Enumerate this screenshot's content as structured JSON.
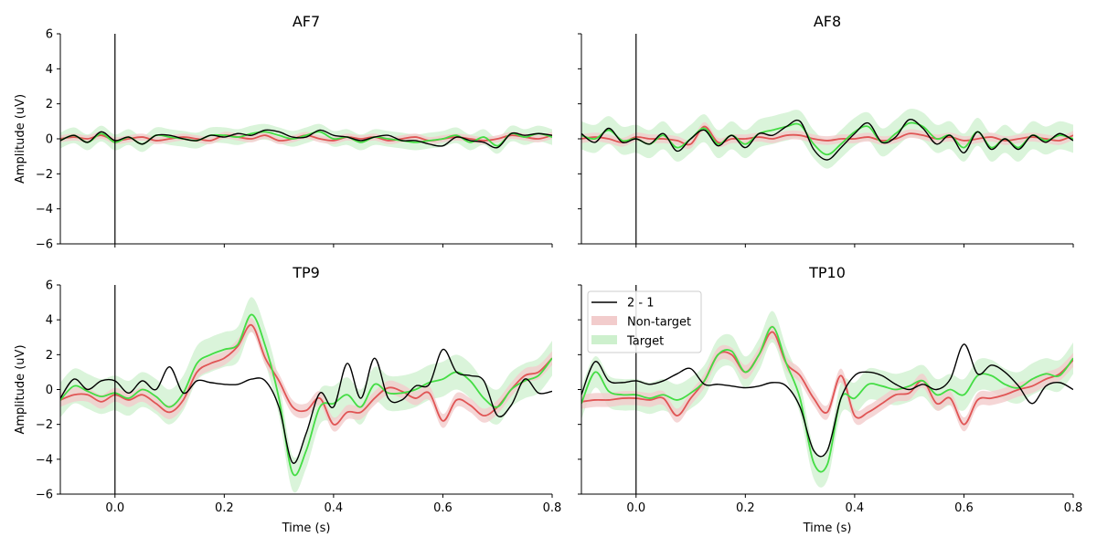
{
  "colors": {
    "difference": "#000000",
    "non_target": "#e05555",
    "non_target_band": "#f2cccc",
    "target": "#44dd44",
    "target_band": "#cdf0cd",
    "axes": "#000000",
    "background": "#ffffff"
  },
  "legend": {
    "placement": "upper-left of TP10 panel",
    "entries": [
      "2 - 1",
      "Non-target",
      "Target"
    ]
  },
  "chart_data": [
    {
      "type": "line",
      "title": "AF7",
      "xlabel": "",
      "ylabel": "Amplitude (uV)",
      "xlim": [
        -0.1,
        0.8
      ],
      "ylim": [
        -6,
        6
      ],
      "x_ticks": [],
      "y_ticks": [
        "6",
        "4",
        "2",
        "0",
        "−2",
        "−4",
        "−6"
      ],
      "vertical_line_at": 0.0,
      "grid": false,
      "x": [
        -0.1,
        -0.075,
        -0.05,
        -0.025,
        0.0,
        0.025,
        0.05,
        0.075,
        0.1,
        0.125,
        0.15,
        0.175,
        0.2,
        0.225,
        0.25,
        0.275,
        0.3,
        0.325,
        0.35,
        0.375,
        0.4,
        0.425,
        0.45,
        0.475,
        0.5,
        0.525,
        0.55,
        0.575,
        0.6,
        0.625,
        0.65,
        0.675,
        0.7,
        0.725,
        0.75,
        0.775,
        0.8
      ],
      "series": [
        {
          "name": "2 - 1",
          "role": "difference",
          "values": [
            -0.1,
            0.2,
            -0.2,
            0.4,
            -0.1,
            0.1,
            -0.3,
            0.2,
            0.2,
            0.0,
            -0.1,
            0.2,
            0.1,
            0.3,
            0.2,
            0.5,
            0.4,
            0.1,
            0.1,
            0.5,
            0.2,
            0.1,
            -0.1,
            0.1,
            0.2,
            -0.1,
            -0.1,
            -0.3,
            -0.4,
            0.1,
            -0.1,
            -0.2,
            -0.5,
            0.3,
            0.2,
            0.3,
            0.2
          ]
        },
        {
          "name": "Non-target",
          "role": "non_target",
          "values": [
            0.0,
            0.1,
            0.0,
            0.2,
            -0.1,
            0.0,
            0.1,
            -0.1,
            0.0,
            0.1,
            0.0,
            -0.1,
            0.2,
            0.1,
            0.0,
            0.2,
            -0.1,
            0.0,
            0.2,
            0.0,
            -0.1,
            0.1,
            0.0,
            0.1,
            -0.1,
            0.0,
            0.1,
            -0.1,
            0.0,
            0.1,
            0.0,
            -0.1,
            0.0,
            0.2,
            0.1,
            0.0,
            0.2
          ],
          "band": 0.2
        },
        {
          "name": "Target",
          "role": "target",
          "values": [
            -0.1,
            0.2,
            -0.2,
            0.3,
            -0.2,
            0.1,
            -0.3,
            0.2,
            0.1,
            0.0,
            -0.1,
            0.2,
            0.2,
            0.1,
            0.3,
            0.4,
            0.2,
            0.0,
            0.2,
            0.4,
            0.0,
            0.1,
            -0.2,
            0.1,
            0.0,
            -0.1,
            -0.2,
            -0.1,
            0.0,
            0.2,
            -0.2,
            0.1,
            -0.4,
            0.3,
            0.1,
            0.3,
            0.1
          ],
          "band": 0.45
        }
      ]
    },
    {
      "type": "line",
      "title": "AF8",
      "xlabel": "",
      "ylabel": "",
      "xlim": [
        -0.1,
        0.8
      ],
      "ylim": [
        -6,
        6
      ],
      "x_ticks": [],
      "y_ticks": [],
      "vertical_line_at": 0.0,
      "grid": false,
      "x": [
        -0.1,
        -0.075,
        -0.05,
        -0.025,
        0.0,
        0.025,
        0.05,
        0.075,
        0.1,
        0.125,
        0.15,
        0.175,
        0.2,
        0.225,
        0.25,
        0.275,
        0.3,
        0.325,
        0.35,
        0.375,
        0.4,
        0.425,
        0.45,
        0.475,
        0.5,
        0.525,
        0.55,
        0.575,
        0.6,
        0.625,
        0.65,
        0.675,
        0.7,
        0.725,
        0.75,
        0.775,
        0.8
      ],
      "series": [
        {
          "name": "2 - 1",
          "role": "difference",
          "values": [
            0.3,
            -0.2,
            0.6,
            -0.2,
            0.0,
            -0.3,
            0.3,
            -0.7,
            0.0,
            0.5,
            -0.4,
            0.2,
            -0.5,
            0.3,
            0.2,
            0.7,
            1.0,
            -0.6,
            -1.2,
            -0.5,
            0.3,
            0.9,
            -0.2,
            0.1,
            1.1,
            0.6,
            -0.3,
            0.2,
            -0.8,
            0.4,
            -0.6,
            0.0,
            -0.6,
            0.2,
            -0.2,
            0.3,
            -0.1
          ]
        },
        {
          "name": "Non-target",
          "role": "non_target",
          "values": [
            0.0,
            0.1,
            0.0,
            -0.2,
            0.1,
            0.0,
            0.0,
            -0.1,
            -0.3,
            0.7,
            -0.2,
            0.0,
            0.0,
            0.1,
            0.0,
            0.2,
            0.2,
            0.0,
            -0.1,
            0.0,
            0.0,
            0.1,
            -0.1,
            0.0,
            0.3,
            0.2,
            0.0,
            0.1,
            -0.1,
            0.0,
            0.1,
            -0.1,
            0.0,
            0.1,
            0.0,
            -0.1,
            0.2
          ],
          "band": 0.25
        },
        {
          "name": "Target",
          "role": "target",
          "values": [
            0.2,
            0.0,
            0.5,
            -0.1,
            0.0,
            -0.3,
            0.2,
            -0.5,
            0.0,
            0.6,
            -0.3,
            0.2,
            -0.3,
            0.3,
            0.5,
            0.7,
            0.8,
            -0.3,
            -0.9,
            -0.3,
            0.4,
            0.7,
            -0.2,
            0.3,
            0.9,
            0.7,
            0.0,
            0.2,
            -0.5,
            0.4,
            -0.5,
            0.0,
            -0.5,
            0.2,
            -0.1,
            0.2,
            0.0
          ],
          "band": 0.8
        }
      ]
    },
    {
      "type": "line",
      "title": "TP9",
      "xlabel": "Time (s)",
      "ylabel": "Amplitude (uV)",
      "xlim": [
        -0.1,
        0.8
      ],
      "ylim": [
        -6,
        6
      ],
      "x_ticks": [
        "0.0",
        "0.2",
        "0.4",
        "0.6",
        "0.8"
      ],
      "y_ticks": [
        "6",
        "4",
        "2",
        "0",
        "−2",
        "−4",
        "−6"
      ],
      "vertical_line_at": 0.0,
      "grid": false,
      "x": [
        -0.1,
        -0.075,
        -0.05,
        -0.025,
        0.0,
        0.025,
        0.05,
        0.075,
        0.1,
        0.125,
        0.15,
        0.175,
        0.2,
        0.225,
        0.25,
        0.275,
        0.3,
        0.325,
        0.35,
        0.375,
        0.4,
        0.425,
        0.45,
        0.475,
        0.5,
        0.525,
        0.55,
        0.575,
        0.6,
        0.625,
        0.65,
        0.675,
        0.7,
        0.725,
        0.75,
        0.775,
        0.8
      ],
      "series": [
        {
          "name": "2 - 1",
          "role": "difference",
          "values": [
            -0.5,
            0.6,
            0.0,
            0.5,
            0.5,
            -0.2,
            0.5,
            0.0,
            1.3,
            -0.2,
            0.5,
            0.4,
            0.3,
            0.3,
            0.6,
            0.5,
            -1.0,
            -4.2,
            -2.5,
            -0.2,
            -1.0,
            1.5,
            -0.5,
            1.8,
            -0.5,
            -0.6,
            0.2,
            0.3,
            2.3,
            1.0,
            0.8,
            0.5,
            -1.5,
            -0.9,
            0.6,
            -0.2,
            -0.1
          ]
        },
        {
          "name": "Non-target",
          "role": "non_target",
          "values": [
            -0.6,
            -0.3,
            -0.3,
            -0.7,
            -0.3,
            -0.6,
            -0.3,
            -0.8,
            -1.3,
            -0.6,
            1.0,
            1.5,
            1.8,
            2.5,
            3.7,
            1.8,
            0.5,
            -1.0,
            -1.2,
            -0.5,
            -2.0,
            -1.3,
            -1.3,
            -0.5,
            0.1,
            -0.1,
            -0.5,
            -0.2,
            -1.8,
            -0.6,
            -0.9,
            -1.5,
            -1.0,
            0.0,
            0.8,
            1.0,
            1.8
          ],
          "band": 0.4
        },
        {
          "name": "Target",
          "role": "target",
          "values": [
            -0.6,
            0.2,
            -0.1,
            -0.4,
            -0.2,
            -0.5,
            0.0,
            -0.4,
            -1.0,
            -0.2,
            1.5,
            2.0,
            2.3,
            2.6,
            4.3,
            2.5,
            -0.5,
            -4.8,
            -3.5,
            -1.0,
            -0.8,
            -0.3,
            -1.0,
            0.3,
            -0.2,
            -0.2,
            0.0,
            0.4,
            0.6,
            1.0,
            0.5,
            -0.5,
            -1.0,
            0.0,
            0.5,
            0.8,
            1.8
          ],
          "band": 1.0
        }
      ]
    },
    {
      "type": "line",
      "title": "TP10",
      "xlabel": "Time (s)",
      "ylabel": "",
      "xlim": [
        -0.1,
        0.8
      ],
      "ylim": [
        -6,
        6
      ],
      "x_ticks": [
        "0.0",
        "0.2",
        "0.4",
        "0.6",
        "0.8"
      ],
      "y_ticks": [],
      "vertical_line_at": 0.0,
      "grid": false,
      "x": [
        -0.1,
        -0.075,
        -0.05,
        -0.025,
        0.0,
        0.025,
        0.05,
        0.075,
        0.1,
        0.125,
        0.15,
        0.175,
        0.2,
        0.225,
        0.25,
        0.275,
        0.3,
        0.325,
        0.35,
        0.375,
        0.4,
        0.425,
        0.45,
        0.475,
        0.5,
        0.525,
        0.55,
        0.575,
        0.6,
        0.625,
        0.65,
        0.675,
        0.7,
        0.725,
        0.75,
        0.775,
        0.8
      ],
      "series": [
        {
          "name": "2 - 1",
          "role": "difference",
          "values": [
            -0.3,
            1.6,
            0.5,
            0.4,
            0.5,
            0.3,
            0.5,
            0.9,
            1.2,
            0.3,
            0.3,
            0.2,
            0.1,
            0.2,
            0.4,
            0.2,
            -1.0,
            -3.5,
            -3.5,
            -0.5,
            0.8,
            1.0,
            0.8,
            0.3,
            0.0,
            0.3,
            0.0,
            0.6,
            2.6,
            0.9,
            1.4,
            1.0,
            0.2,
            -0.8,
            0.2,
            0.4,
            0.0
          ]
        },
        {
          "name": "Non-target",
          "role": "non_target",
          "values": [
            -0.7,
            -0.6,
            -0.6,
            -0.5,
            -0.5,
            -0.6,
            -0.5,
            -1.5,
            -0.5,
            0.5,
            2.0,
            2.0,
            1.0,
            2.0,
            3.3,
            1.5,
            0.8,
            -0.5,
            -1.3,
            0.8,
            -1.5,
            -1.3,
            -0.8,
            -0.3,
            -0.2,
            0.5,
            -0.8,
            -0.5,
            -2.0,
            -0.6,
            -0.5,
            -0.3,
            0.0,
            0.2,
            0.6,
            0.9,
            1.7
          ],
          "band": 0.4
        },
        {
          "name": "Target",
          "role": "target",
          "values": [
            -0.8,
            1.0,
            -0.1,
            -0.3,
            -0.3,
            -0.5,
            -0.3,
            -0.6,
            -0.2,
            0.5,
            2.0,
            2.2,
            1.0,
            2.0,
            3.6,
            1.5,
            -0.5,
            -4.2,
            -4.3,
            -0.5,
            -0.5,
            0.3,
            0.2,
            0.0,
            0.2,
            0.5,
            -0.3,
            0.0,
            -0.3,
            0.8,
            0.8,
            0.3,
            0.1,
            0.6,
            0.9,
            0.8,
            1.8
          ],
          "band": 0.9
        }
      ]
    }
  ]
}
